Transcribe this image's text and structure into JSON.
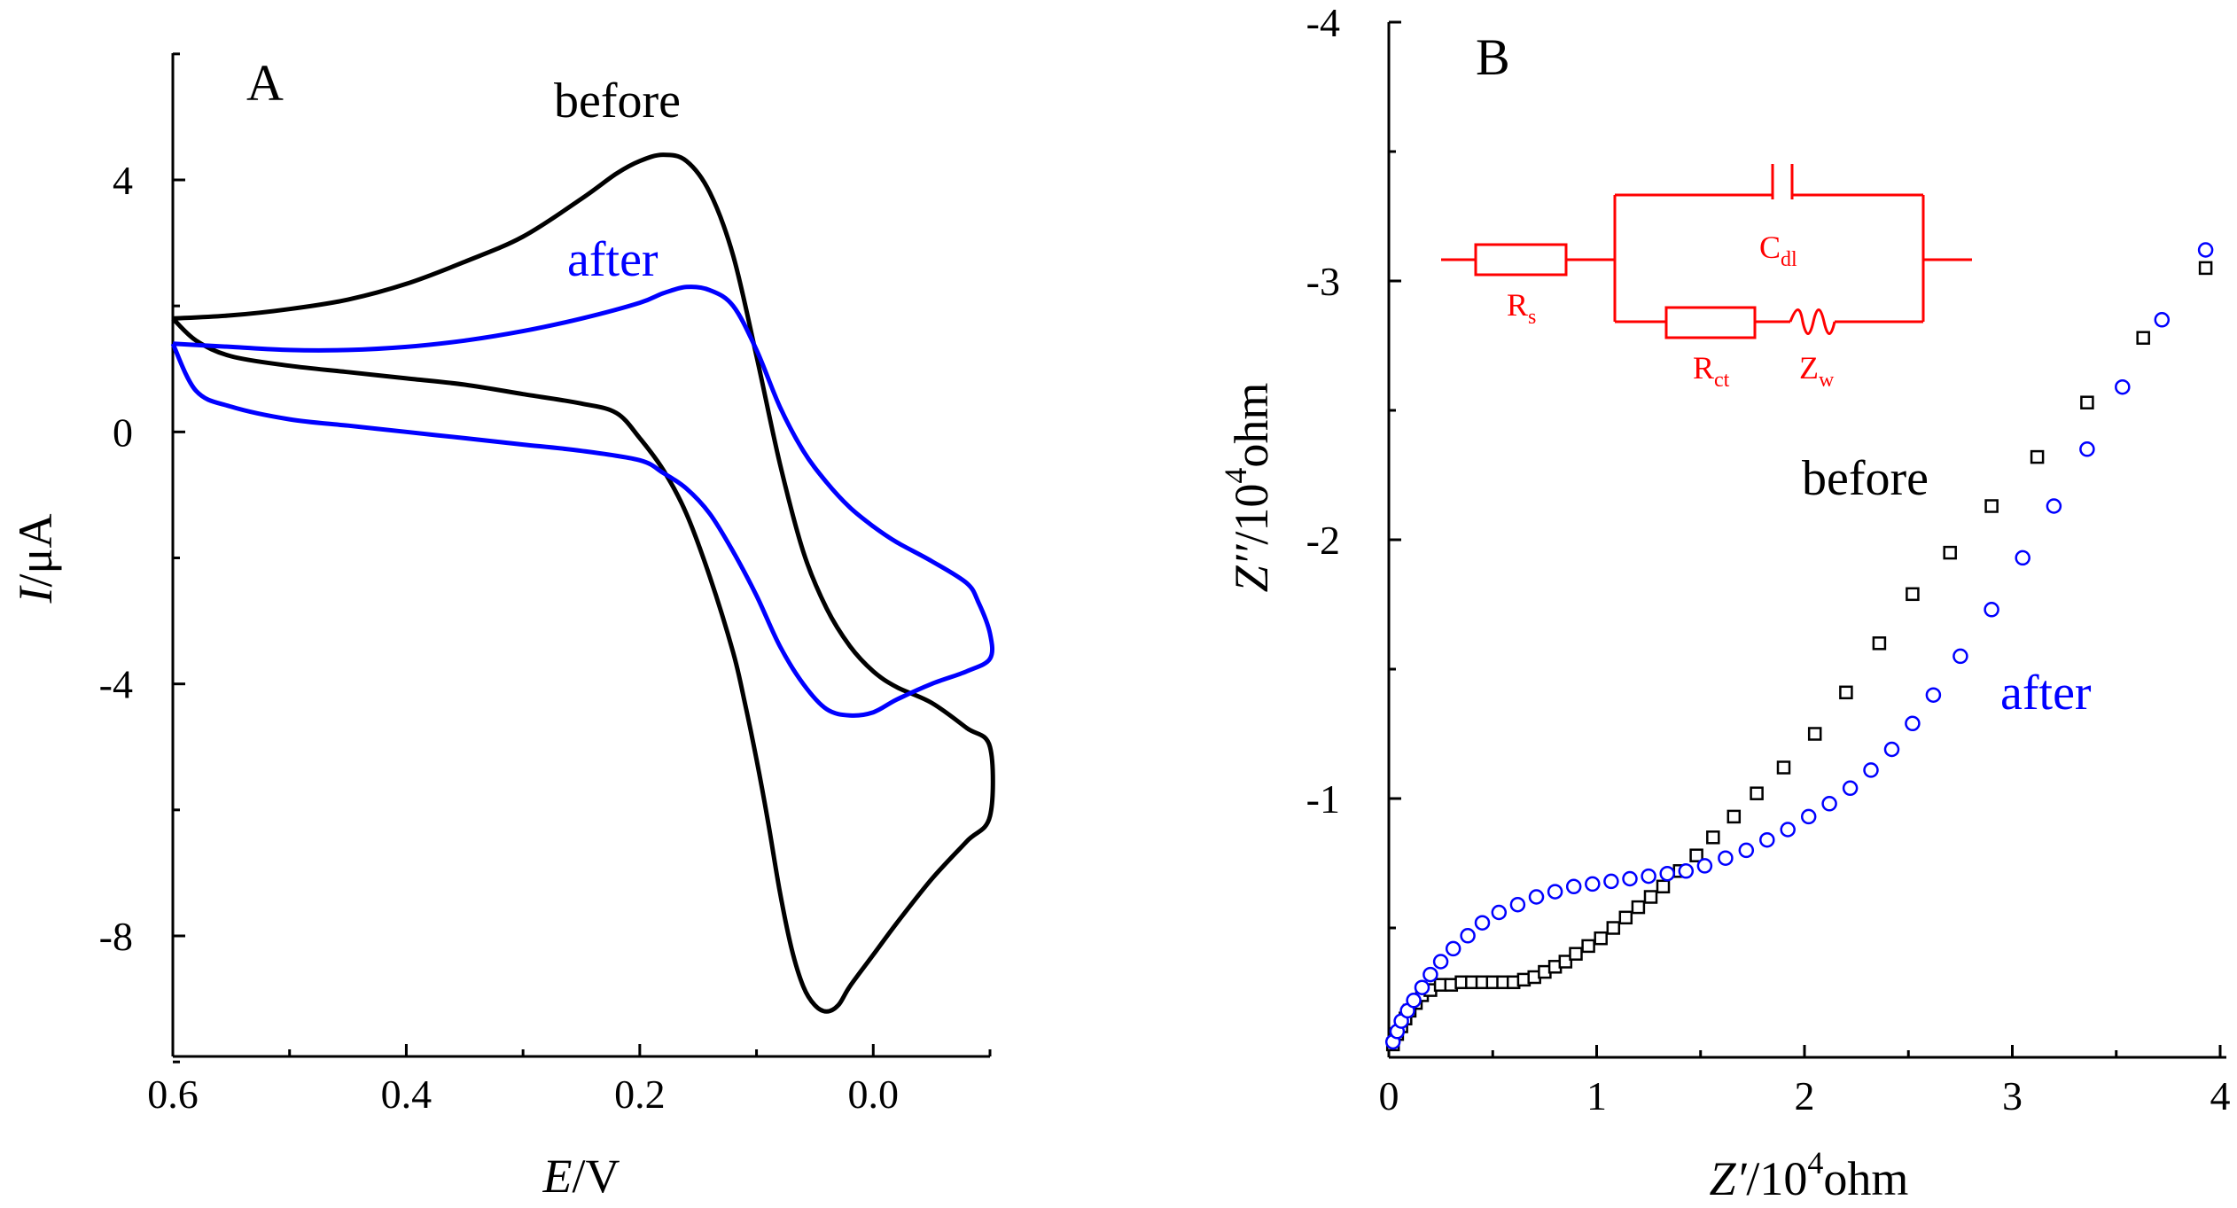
{
  "chart_data": [
    {
      "type": "line",
      "panel_label": "A",
      "title": "",
      "xlabel": {
        "italic": "E",
        "rest": "/V"
      },
      "ylabel": {
        "italic": "I",
        "rest": "/μA"
      },
      "xlim": [
        0.6,
        -0.1
      ],
      "ylim": [
        -10,
        6
      ],
      "xticks": [
        {
          "value": 0.6,
          "label": "0.6"
        },
        {
          "value": 0.4,
          "label": "0.4"
        },
        {
          "value": 0.2,
          "label": "0.2"
        },
        {
          "value": 0.0,
          "label": "0.0"
        }
      ],
      "yticks": [
        {
          "value": 4,
          "label": "4"
        },
        {
          "value": 0,
          "label": "0"
        },
        {
          "value": -4,
          "label": "-4"
        },
        {
          "value": -8,
          "label": "-8"
        }
      ],
      "series": [
        {
          "name": "before",
          "color": "#000000",
          "x": [
            0.6,
            0.55,
            0.5,
            0.45,
            0.4,
            0.35,
            0.3,
            0.25,
            0.22,
            0.2,
            0.18,
            0.16,
            0.14,
            0.12,
            0.1,
            0.08,
            0.06,
            0.04,
            0.02,
            0.0,
            -0.02,
            -0.05,
            -0.08,
            -0.1,
            -0.1,
            -0.08,
            -0.05,
            -0.02,
            0.0,
            0.02,
            0.03,
            0.04,
            0.05,
            0.06,
            0.07,
            0.08,
            0.09,
            0.1,
            0.11,
            0.12,
            0.14,
            0.16,
            0.18,
            0.2,
            0.22,
            0.25,
            0.3,
            0.35,
            0.4,
            0.45,
            0.5,
            0.55,
            0.58,
            0.6
          ],
          "y": [
            1.8,
            1.85,
            1.95,
            2.1,
            2.35,
            2.7,
            3.1,
            3.7,
            4.1,
            4.3,
            4.4,
            4.3,
            3.8,
            2.8,
            1.2,
            -0.5,
            -1.9,
            -2.8,
            -3.4,
            -3.8,
            -4.05,
            -4.3,
            -4.7,
            -5.0,
            -6.1,
            -6.5,
            -7.1,
            -7.8,
            -8.3,
            -8.8,
            -9.1,
            -9.2,
            -9.1,
            -8.8,
            -8.2,
            -7.3,
            -6.2,
            -5.2,
            -4.3,
            -3.5,
            -2.3,
            -1.3,
            -0.6,
            -0.1,
            0.3,
            0.45,
            0.6,
            0.75,
            0.85,
            0.95,
            1.05,
            1.2,
            1.45,
            1.8
          ]
        },
        {
          "name": "after",
          "color": "#0000ff",
          "x": [
            0.6,
            0.55,
            0.5,
            0.45,
            0.4,
            0.35,
            0.3,
            0.25,
            0.2,
            0.18,
            0.16,
            0.14,
            0.12,
            0.1,
            0.08,
            0.06,
            0.04,
            0.02,
            0.0,
            -0.02,
            -0.05,
            -0.08,
            -0.09,
            -0.1,
            -0.1,
            -0.08,
            -0.05,
            -0.02,
            0.0,
            0.02,
            0.04,
            0.06,
            0.08,
            0.1,
            0.12,
            0.14,
            0.16,
            0.18,
            0.2,
            0.25,
            0.3,
            0.35,
            0.4,
            0.45,
            0.5,
            0.55,
            0.58,
            0.6
          ],
          "y": [
            1.4,
            1.35,
            1.3,
            1.3,
            1.35,
            1.45,
            1.6,
            1.8,
            2.05,
            2.2,
            2.3,
            2.25,
            2.0,
            1.3,
            0.4,
            -0.3,
            -0.8,
            -1.2,
            -1.5,
            -1.75,
            -2.05,
            -2.4,
            -2.7,
            -3.2,
            -3.6,
            -3.8,
            -4.0,
            -4.25,
            -4.45,
            -4.5,
            -4.4,
            -4.0,
            -3.4,
            -2.6,
            -1.9,
            -1.3,
            -0.9,
            -0.65,
            -0.45,
            -0.3,
            -0.2,
            -0.1,
            0.0,
            0.1,
            0.2,
            0.4,
            0.65,
            1.4
          ]
        }
      ],
      "annotations": [
        {
          "text": "before",
          "color": "#000000"
        },
        {
          "text": "after",
          "color": "#0000ff"
        }
      ]
    },
    {
      "type": "scatter",
      "panel_label": "B",
      "title": "",
      "xlabel": {
        "italic": "Z′",
        "rest": "/10",
        "sup": "4",
        "tail": "ohm"
      },
      "ylabel": {
        "italic": "Z′′",
        "rest": "/10",
        "sup": "4",
        "tail": "ohm"
      },
      "xlim": [
        0,
        4
      ],
      "ylim": [
        0,
        -4
      ],
      "xticks": [
        {
          "value": 0,
          "label": "0"
        },
        {
          "value": 1,
          "label": "1"
        },
        {
          "value": 2,
          "label": "2"
        },
        {
          "value": 3,
          "label": "3"
        },
        {
          "value": 4,
          "label": "4"
        }
      ],
      "yticks": [
        {
          "value": -1,
          "label": "-1"
        },
        {
          "value": -2,
          "label": "-2"
        },
        {
          "value": -3,
          "label": "-3"
        },
        {
          "value": -4,
          "label": "-4"
        }
      ],
      "series": [
        {
          "name": "before",
          "color": "#000000",
          "marker": "square",
          "x": [
            0.02,
            0.04,
            0.06,
            0.08,
            0.1,
            0.13,
            0.16,
            0.2,
            0.25,
            0.3,
            0.35,
            0.4,
            0.45,
            0.5,
            0.55,
            0.6,
            0.65,
            0.7,
            0.75,
            0.8,
            0.85,
            0.9,
            0.96,
            1.02,
            1.08,
            1.14,
            1.2,
            1.26,
            1.32,
            1.4,
            1.48,
            1.56,
            1.66,
            1.77,
            1.9,
            2.05,
            2.2,
            2.36,
            2.52,
            2.7,
            2.9,
            3.12,
            3.36,
            3.63,
            3.93
          ],
          "y": [
            -0.05,
            -0.09,
            -0.12,
            -0.15,
            -0.18,
            -0.21,
            -0.24,
            -0.26,
            -0.28,
            -0.28,
            -0.29,
            -0.29,
            -0.29,
            -0.29,
            -0.29,
            -0.29,
            -0.3,
            -0.31,
            -0.33,
            -0.35,
            -0.37,
            -0.4,
            -0.43,
            -0.46,
            -0.5,
            -0.54,
            -0.58,
            -0.62,
            -0.66,
            -0.72,
            -0.78,
            -0.85,
            -0.93,
            -1.02,
            -1.12,
            -1.25,
            -1.41,
            -1.6,
            -1.79,
            -1.95,
            -2.13,
            -2.32,
            -2.53,
            -2.78,
            -3.05
          ]
        },
        {
          "name": "after",
          "color": "#0000ff",
          "marker": "circle",
          "x": [
            0.02,
            0.04,
            0.06,
            0.09,
            0.12,
            0.16,
            0.2,
            0.25,
            0.31,
            0.38,
            0.45,
            0.53,
            0.62,
            0.71,
            0.8,
            0.89,
            0.98,
            1.07,
            1.16,
            1.25,
            1.34,
            1.43,
            1.52,
            1.62,
            1.72,
            1.82,
            1.92,
            2.02,
            2.12,
            2.22,
            2.32,
            2.42,
            2.52,
            2.62,
            2.75,
            2.9,
            3.05,
            3.2,
            3.36,
            3.53,
            3.72,
            3.93
          ],
          "y": [
            -0.06,
            -0.1,
            -0.14,
            -0.18,
            -0.22,
            -0.27,
            -0.32,
            -0.37,
            -0.42,
            -0.47,
            -0.52,
            -0.56,
            -0.59,
            -0.62,
            -0.64,
            -0.66,
            -0.67,
            -0.68,
            -0.69,
            -0.7,
            -0.71,
            -0.72,
            -0.74,
            -0.77,
            -0.8,
            -0.84,
            -0.88,
            -0.93,
            -0.98,
            -1.04,
            -1.11,
            -1.19,
            -1.29,
            -1.4,
            -1.55,
            -1.73,
            -1.93,
            -2.13,
            -2.35,
            -2.59,
            -2.85,
            -3.12
          ]
        }
      ],
      "annotations": [
        {
          "text": "before",
          "color": "#000000"
        },
        {
          "text": "after",
          "color": "#0000ff"
        }
      ],
      "inset_circuit": {
        "color": "#ff0000",
        "labels": [
          {
            "main": "R",
            "sub": "s"
          },
          {
            "main": "C",
            "sub": "dl"
          },
          {
            "main": "R",
            "sub": "ct"
          },
          {
            "main": "Z",
            "sub": "w"
          }
        ]
      }
    }
  ]
}
